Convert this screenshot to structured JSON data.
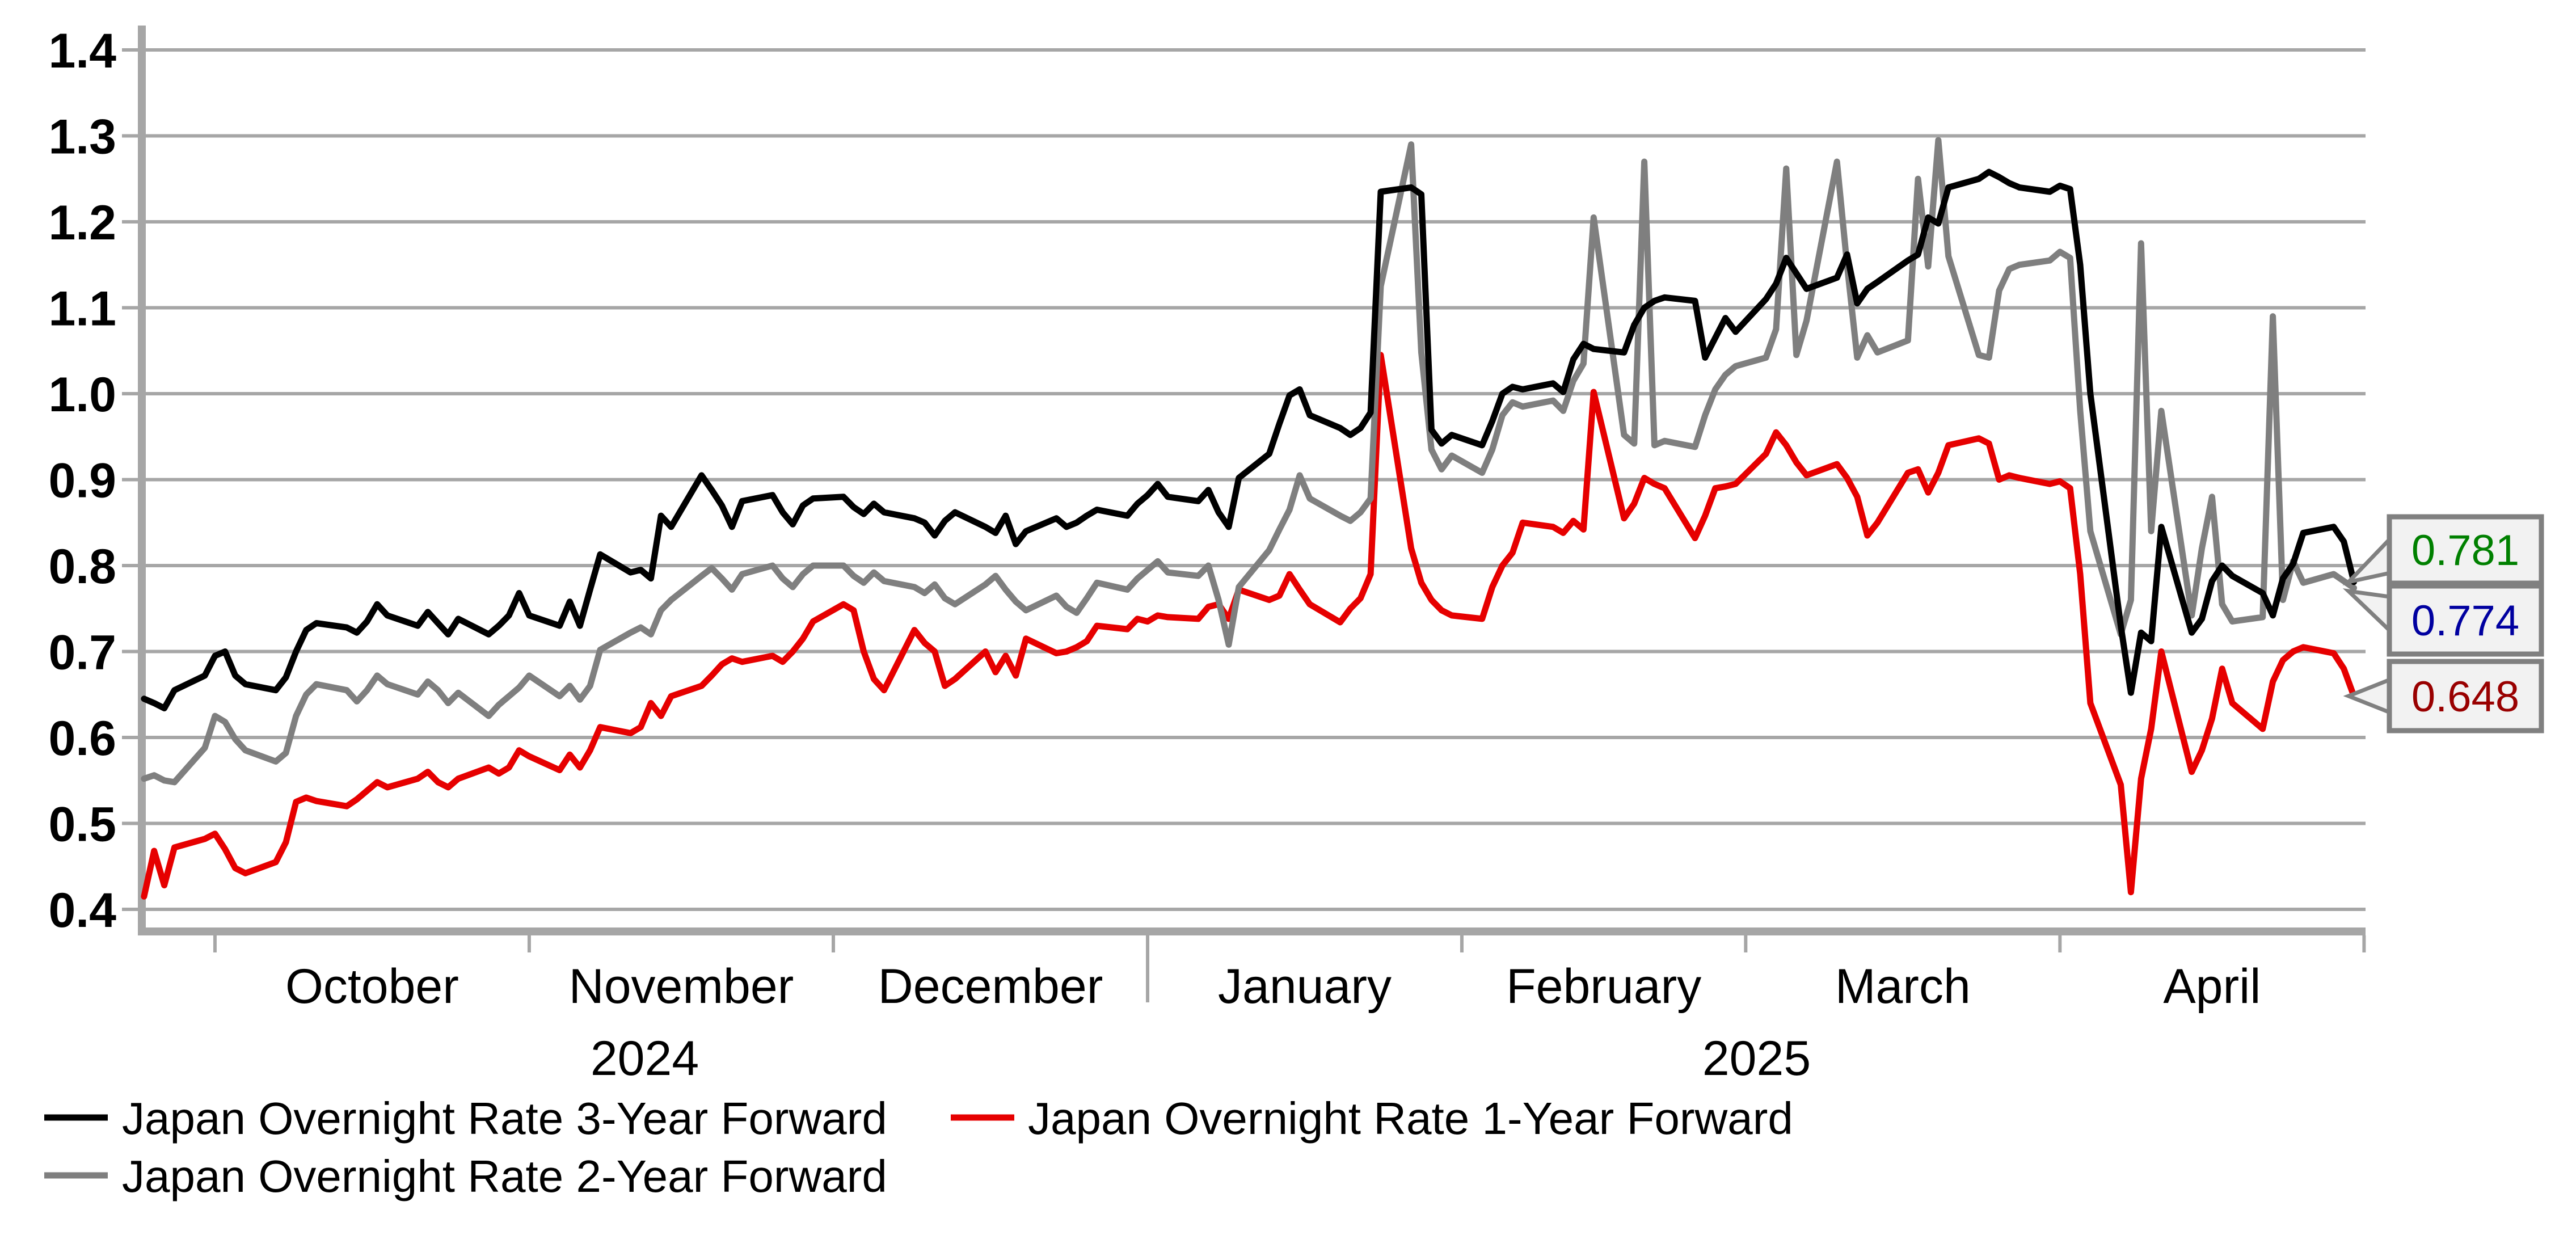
{
  "chart_data": {
    "type": "line",
    "title": "",
    "grid": true,
    "legend_position": "bottom-left",
    "ylim": [
      0.4,
      1.4
    ],
    "y_ticks": [
      "1.4",
      "1.3",
      "1.2",
      "1.1",
      "1.0",
      "0.9",
      "0.8",
      "0.7",
      "0.6",
      "0.5",
      "0.4"
    ],
    "x_month_ticks": [
      {
        "date": "2024-10-01",
        "long": false
      },
      {
        "date": "2024-11-01",
        "long": false
      },
      {
        "date": "2024-12-01",
        "long": false
      },
      {
        "date": "2025-01-01",
        "long": true
      },
      {
        "date": "2025-02-01",
        "long": false
      },
      {
        "date": "2025-03-01",
        "long": false
      },
      {
        "date": "2025-04-01",
        "long": false
      },
      {
        "date": "2025-05-01",
        "long": false
      }
    ],
    "x_month_labels": [
      {
        "text": "October",
        "start": "2024-10-01",
        "end": "2024-11-01"
      },
      {
        "text": "November",
        "start": "2024-11-01",
        "end": "2024-12-01"
      },
      {
        "text": "December",
        "start": "2024-12-01",
        "end": "2025-01-01"
      },
      {
        "text": "January",
        "start": "2025-01-01",
        "end": "2025-02-01"
      },
      {
        "text": "February",
        "start": "2025-02-01",
        "end": "2025-03-01"
      },
      {
        "text": "March",
        "start": "2025-03-01",
        "end": "2025-04-01"
      },
      {
        "text": "April",
        "start": "2025-04-01",
        "end": "2025-05-01"
      }
    ],
    "x_year_labels": [
      {
        "text": "2024"
      },
      {
        "text": "2025"
      }
    ],
    "x": [
      "2024-09-24",
      "2024-09-25",
      "2024-09-26",
      "2024-09-27",
      "2024-09-30",
      "2024-10-01",
      "2024-10-02",
      "2024-10-03",
      "2024-10-04",
      "2024-10-07",
      "2024-10-08",
      "2024-10-09",
      "2024-10-10",
      "2024-10-11",
      "2024-10-14",
      "2024-10-15",
      "2024-10-16",
      "2024-10-17",
      "2024-10-18",
      "2024-10-21",
      "2024-10-22",
      "2024-10-23",
      "2024-10-24",
      "2024-10-25",
      "2024-10-28",
      "2024-10-29",
      "2024-10-30",
      "2024-10-31",
      "2024-11-01",
      "2024-11-04",
      "2024-11-05",
      "2024-11-06",
      "2024-11-07",
      "2024-11-08",
      "2024-11-11",
      "2024-11-12",
      "2024-11-13",
      "2024-11-14",
      "2024-11-15",
      "2024-11-18",
      "2024-11-19",
      "2024-11-20",
      "2024-11-21",
      "2024-11-22",
      "2024-11-25",
      "2024-11-26",
      "2024-11-27",
      "2024-11-28",
      "2024-11-29",
      "2024-12-02",
      "2024-12-03",
      "2024-12-04",
      "2024-12-05",
      "2024-12-06",
      "2024-12-09",
      "2024-12-10",
      "2024-12-11",
      "2024-12-12",
      "2024-12-13",
      "2024-12-16",
      "2024-12-17",
      "2024-12-18",
      "2024-12-19",
      "2024-12-20",
      "2024-12-23",
      "2024-12-24",
      "2024-12-25",
      "2024-12-26",
      "2024-12-27",
      "2024-12-30",
      "2024-12-31",
      "2025-01-01",
      "2025-01-02",
      "2025-01-03",
      "2025-01-06",
      "2025-01-07",
      "2025-01-08",
      "2025-01-09",
      "2025-01-10",
      "2025-01-13",
      "2025-01-14",
      "2025-01-15",
      "2025-01-16",
      "2025-01-17",
      "2025-01-20",
      "2025-01-21",
      "2025-01-22",
      "2025-01-23",
      "2025-01-24",
      "2025-01-27",
      "2025-01-28",
      "2025-01-29",
      "2025-01-30",
      "2025-01-31",
      "2025-02-03",
      "2025-02-04",
      "2025-02-05",
      "2025-02-06",
      "2025-02-07",
      "2025-02-10",
      "2025-02-11",
      "2025-02-12",
      "2025-02-13",
      "2025-02-14",
      "2025-02-17",
      "2025-02-18",
      "2025-02-19",
      "2025-02-20",
      "2025-02-21",
      "2025-02-24",
      "2025-02-25",
      "2025-02-26",
      "2025-02-27",
      "2025-02-28",
      "2025-03-03",
      "2025-03-04",
      "2025-03-05",
      "2025-03-06",
      "2025-03-07",
      "2025-03-10",
      "2025-03-11",
      "2025-03-12",
      "2025-03-13",
      "2025-03-14",
      "2025-03-17",
      "2025-03-18",
      "2025-03-19",
      "2025-03-20",
      "2025-03-21",
      "2025-03-24",
      "2025-03-25",
      "2025-03-26",
      "2025-03-27",
      "2025-03-28",
      "2025-03-31",
      "2025-04-01",
      "2025-04-02",
      "2025-04-03",
      "2025-04-04",
      "2025-04-07",
      "2025-04-08",
      "2025-04-09",
      "2025-04-10",
      "2025-04-11",
      "2025-04-14",
      "2025-04-15",
      "2025-04-16",
      "2025-04-17",
      "2025-04-18",
      "2025-04-21",
      "2025-04-22",
      "2025-04-23",
      "2025-04-24",
      "2025-04-25",
      "2025-04-28",
      "2025-04-29",
      "2025-04-30"
    ],
    "series": [
      {
        "name": "Japan Overnight Rate 3-Year Forward",
        "color": "#000000",
        "values": [
          0.645,
          0.64,
          0.634,
          0.655,
          0.672,
          0.695,
          0.7,
          0.672,
          0.662,
          0.655,
          0.67,
          0.7,
          0.725,
          0.733,
          0.728,
          0.722,
          0.735,
          0.755,
          0.742,
          0.73,
          0.746,
          0.733,
          0.72,
          0.738,
          0.72,
          0.73,
          0.742,
          0.768,
          0.742,
          0.73,
          0.758,
          0.73,
          0.772,
          0.813,
          0.792,
          0.795,
          0.785,
          0.858,
          0.845,
          0.905,
          0.888,
          0.87,
          0.845,
          0.875,
          0.882,
          0.862,
          0.848,
          0.87,
          0.878,
          0.88,
          0.868,
          0.86,
          0.872,
          0.862,
          0.855,
          0.85,
          0.835,
          0.852,
          0.862,
          0.845,
          0.838,
          0.858,
          0.825,
          0.84,
          0.855,
          0.845,
          0.85,
          0.858,
          0.865,
          0.858,
          0.872,
          0.882,
          0.895,
          0.88,
          0.875,
          0.888,
          0.862,
          0.845,
          0.902,
          0.93,
          0.965,
          0.998,
          1.005,
          0.975,
          0.96,
          0.952,
          0.96,
          0.978,
          1.235,
          1.24,
          1.232,
          0.958,
          0.942,
          0.952,
          0.94,
          0.968,
          1.0,
          1.008,
          1.005,
          1.012,
          1.002,
          1.04,
          1.058,
          1.052,
          1.048,
          1.08,
          1.1,
          1.108,
          1.112,
          1.108,
          1.042,
          1.065,
          1.088,
          1.072,
          1.11,
          1.128,
          1.158,
          1.14,
          1.122,
          1.135,
          1.162,
          1.105,
          1.122,
          1.13,
          1.155,
          1.162,
          1.205,
          1.198,
          1.24,
          1.25,
          1.258,
          1.252,
          1.245,
          1.24,
          1.235,
          1.242,
          1.238,
          1.15,
          1.0,
          0.73,
          0.652,
          0.722,
          0.712,
          0.845,
          0.722,
          0.738,
          0.782,
          0.8,
          0.788,
          0.768,
          0.742,
          0.785,
          0.802,
          0.838,
          0.845,
          0.828,
          0.781
        ]
      },
      {
        "name": "Japan Overnight Rate 1-Year Forward",
        "color": "#E60000",
        "values": [
          0.415,
          0.468,
          0.428,
          0.472,
          0.482,
          0.488,
          0.47,
          0.448,
          0.442,
          0.455,
          0.478,
          0.525,
          0.53,
          0.526,
          0.52,
          0.528,
          0.538,
          0.548,
          0.542,
          0.552,
          0.56,
          0.548,
          0.542,
          0.552,
          0.565,
          0.558,
          0.565,
          0.585,
          0.578,
          0.562,
          0.58,
          0.565,
          0.585,
          0.612,
          0.605,
          0.612,
          0.64,
          0.625,
          0.648,
          0.66,
          0.672,
          0.685,
          0.692,
          0.688,
          0.695,
          0.688,
          0.7,
          0.715,
          0.735,
          0.755,
          0.748,
          0.7,
          0.668,
          0.655,
          0.725,
          0.71,
          0.7,
          0.66,
          0.668,
          0.7,
          0.676,
          0.695,
          0.672,
          0.715,
          0.698,
          0.7,
          0.705,
          0.712,
          0.73,
          0.726,
          0.738,
          0.735,
          0.742,
          0.74,
          0.738,
          0.752,
          0.755,
          0.738,
          0.772,
          0.76,
          0.765,
          0.79,
          0.772,
          0.755,
          0.734,
          0.75,
          0.762,
          0.79,
          1.045,
          0.82,
          0.78,
          0.76,
          0.748,
          0.742,
          0.738,
          0.775,
          0.8,
          0.815,
          0.85,
          0.845,
          0.838,
          0.852,
          0.842,
          1.002,
          0.855,
          0.872,
          0.902,
          0.895,
          0.89,
          0.832,
          0.858,
          0.89,
          0.892,
          0.895,
          0.93,
          0.955,
          0.94,
          0.92,
          0.905,
          0.918,
          0.902,
          0.88,
          0.835,
          0.85,
          0.908,
          0.912,
          0.885,
          0.908,
          0.94,
          0.948,
          0.942,
          0.9,
          0.905,
          0.902,
          0.895,
          0.898,
          0.89,
          0.79,
          0.64,
          0.545,
          0.42,
          0.552,
          0.61,
          0.7,
          0.56,
          0.585,
          0.622,
          0.68,
          0.64,
          0.61,
          0.665,
          0.69,
          0.7,
          0.705,
          0.698,
          0.68,
          0.648
        ]
      },
      {
        "name": "Japan Overnight Rate 2-Year Forward",
        "color": "#7F7F7F",
        "values": [
          0.552,
          0.556,
          0.55,
          0.548,
          0.588,
          0.625,
          0.618,
          0.598,
          0.585,
          0.572,
          0.582,
          0.625,
          0.65,
          0.662,
          0.655,
          0.642,
          0.655,
          0.672,
          0.662,
          0.65,
          0.665,
          0.655,
          0.64,
          0.652,
          0.625,
          0.638,
          0.648,
          0.658,
          0.672,
          0.648,
          0.66,
          0.644,
          0.66,
          0.702,
          0.722,
          0.728,
          0.72,
          0.748,
          0.76,
          0.788,
          0.797,
          0.785,
          0.772,
          0.79,
          0.8,
          0.785,
          0.775,
          0.79,
          0.8,
          0.8,
          0.788,
          0.78,
          0.792,
          0.782,
          0.775,
          0.768,
          0.778,
          0.762,
          0.755,
          0.778,
          0.788,
          0.772,
          0.758,
          0.748,
          0.765,
          0.752,
          0.745,
          0.762,
          0.78,
          0.772,
          0.785,
          0.795,
          0.805,
          0.792,
          0.788,
          0.8,
          0.76,
          0.708,
          0.775,
          0.818,
          0.842,
          0.865,
          0.905,
          0.878,
          0.858,
          0.852,
          0.862,
          0.878,
          1.125,
          1.29,
          1.048,
          0.935,
          0.912,
          0.928,
          0.908,
          0.935,
          0.975,
          0.99,
          0.985,
          0.992,
          0.98,
          1.015,
          1.035,
          1.205,
          0.952,
          0.942,
          1.27,
          0.94,
          0.945,
          0.938,
          0.975,
          1.005,
          1.022,
          1.032,
          1.042,
          1.075,
          1.262,
          1.045,
          1.085,
          1.27,
          1.15,
          1.042,
          1.068,
          1.048,
          1.062,
          1.25,
          1.148,
          1.295,
          1.16,
          1.045,
          1.042,
          1.12,
          1.145,
          1.15,
          1.155,
          1.165,
          1.158,
          0.98,
          0.84,
          0.72,
          0.76,
          1.175,
          0.84,
          0.98,
          0.742,
          0.82,
          0.88,
          0.755,
          0.735,
          0.74,
          1.09,
          0.76,
          0.805,
          0.78,
          0.79,
          0.782,
          0.774
        ]
      }
    ],
    "end_labels": [
      {
        "text": "0.781",
        "color": "#008000",
        "series": "Japan Overnight Rate 3-Year Forward"
      },
      {
        "text": "0.774",
        "color": "#0000A0",
        "series": "Japan Overnight Rate 2-Year Forward"
      },
      {
        "text": "0.648",
        "color": "#990000",
        "series": "Japan Overnight Rate 1-Year Forward"
      }
    ],
    "colors": {
      "gridline": "#A6A6A6",
      "axis": "#A6A6A6",
      "callout_bg": "#F2F2F2",
      "callout_border": "#808080"
    }
  }
}
